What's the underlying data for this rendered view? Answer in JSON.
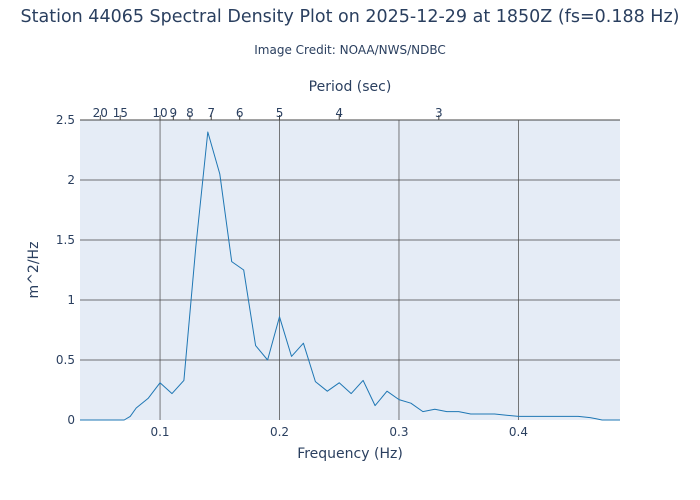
{
  "chart_data": {
    "type": "line",
    "title": "Station 44065 Spectral Density Plot  on 2025-12-29 at 1850Z (fs=0.188 Hz)",
    "subtitle": "Image Credit: NOAA/NWS/NDBC",
    "xlabel": "Frequency (Hz)",
    "ylabel": "m^2/Hz",
    "x2label": "Period (sec)",
    "xlim": [
      0.033,
      0.485
    ],
    "ylim": [
      0,
      2.5
    ],
    "x_ticks": [
      0.1,
      0.2,
      0.3,
      0.4
    ],
    "x_tick_labels": [
      "0.1",
      "0.2",
      "0.3",
      "0.4"
    ],
    "y_ticks": [
      0,
      0.5,
      1,
      1.5,
      2,
      2.5
    ],
    "y_tick_labels": [
      "0",
      "0.5",
      "1",
      "1.5",
      "2",
      "2.5"
    ],
    "period_ticks": [
      20,
      15,
      10,
      9,
      8,
      7,
      6,
      5,
      4,
      3
    ],
    "period_tick_labels": [
      "20",
      "15",
      "10",
      "9",
      "8",
      "7",
      "6",
      "5",
      "4",
      "3"
    ],
    "grid": true,
    "line_color": "#1f77b4",
    "plot_bg": "#e5ecf6",
    "grid_color": "#444444",
    "x": [
      0.033,
      0.04,
      0.05,
      0.06,
      0.07,
      0.075,
      0.08,
      0.09,
      0.1,
      0.11,
      0.12,
      0.13,
      0.14,
      0.15,
      0.16,
      0.17,
      0.18,
      0.19,
      0.2,
      0.21,
      0.22,
      0.23,
      0.24,
      0.25,
      0.26,
      0.27,
      0.28,
      0.29,
      0.3,
      0.31,
      0.32,
      0.33,
      0.34,
      0.35,
      0.36,
      0.37,
      0.38,
      0.39,
      0.4,
      0.41,
      0.42,
      0.43,
      0.44,
      0.45,
      0.46,
      0.465,
      0.47,
      0.48,
      0.485
    ],
    "y": [
      0,
      0,
      0,
      0,
      0,
      0.03,
      0.1,
      0.18,
      0.31,
      0.22,
      0.33,
      1.45,
      2.4,
      2.05,
      1.32,
      1.25,
      0.62,
      0.5,
      0.86,
      0.53,
      0.64,
      0.32,
      0.24,
      0.31,
      0.22,
      0.33,
      0.12,
      0.24,
      0.17,
      0.14,
      0.07,
      0.09,
      0.07,
      0.07,
      0.05,
      0.05,
      0.05,
      0.04,
      0.03,
      0.03,
      0.03,
      0.03,
      0.03,
      0.03,
      0.02,
      0.01,
      0,
      0,
      0
    ]
  }
}
